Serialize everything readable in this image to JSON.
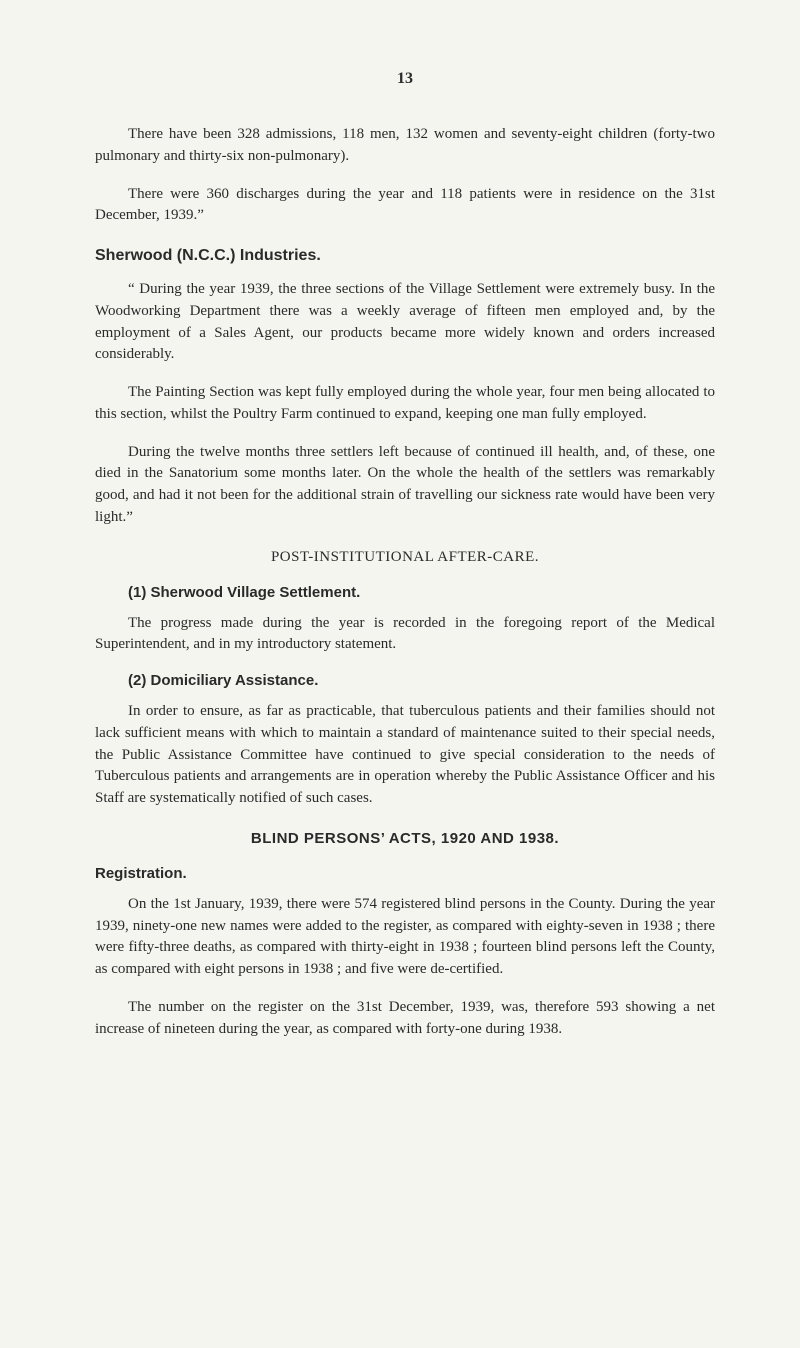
{
  "pageNumber": "13",
  "paragraphs": {
    "p1": "There have been 328 admissions, 118 men, 132 women and seventy-eight children (forty-two pulmonary and thirty-six non-pulmonary).",
    "p2": "There were 360 discharges during the year and 118 patients were in residence on the 31st December, 1939.”",
    "p3": "“ During the year 1939, the three sections of the Village Settlement were extremely busy. In the Woodworking Department there was a weekly average of fifteen men employed and, by the employment of a Sales Agent, our products became more widely known and orders increased considerably.",
    "p4": "The Painting Section was kept fully employed during the whole year, four men being allocated to this section, whilst the Poultry Farm continued to expand, keeping one man fully employed.",
    "p5": "During the twelve months three settlers left because of continued ill health, and, of these, one died in the Sanatorium some months later. On the whole the health of the settlers was remarkably good, and had it not been for the additional strain of travelling our sickness rate would have been very light.”",
    "p6": "The progress made during the year is recorded in the foregoing report of the Medical Superintendent, and in my introductory statement.",
    "p7": "In order to ensure, as far as practicable, that tuberculous patients and their families should not lack sufficient means with which to main­tain a standard of maintenance suited to their special needs, the Public Assistance Committee have continued to give special consideration to the needs of Tuberculous patients and arrangements are in operation whereby the Public Assistance Officer and his Staff are systematically notified of such cases.",
    "p8": "On the 1st January, 1939, there were 574 registered blind persons in the County. During the year 1939, ninety-one new names were added to the register, as compared with eighty-seven in 1938 ; there were fifty-three deaths, as compared with thirty-eight in 1938 ; fourteen blind persons left the County, as compared with eight persons in 1938 ; and five were de-certified.",
    "p9": "The number on the register on the 31st December, 1939, was, there­fore 593 showing a net increase of nineteen during the year, as compared with forty-one during 1938."
  },
  "headings": {
    "h1": "Sherwood (N.C.C.) Industries.",
    "centered1": "POST-INSTITUTIONAL AFTER-CARE.",
    "h2": "(1) Sherwood Village Settlement.",
    "h3": "(2) Domiciliary Assistance.",
    "centered2": "BLIND PERSONS’ ACTS, 1920 AND 1938.",
    "h4": "Registration."
  }
}
